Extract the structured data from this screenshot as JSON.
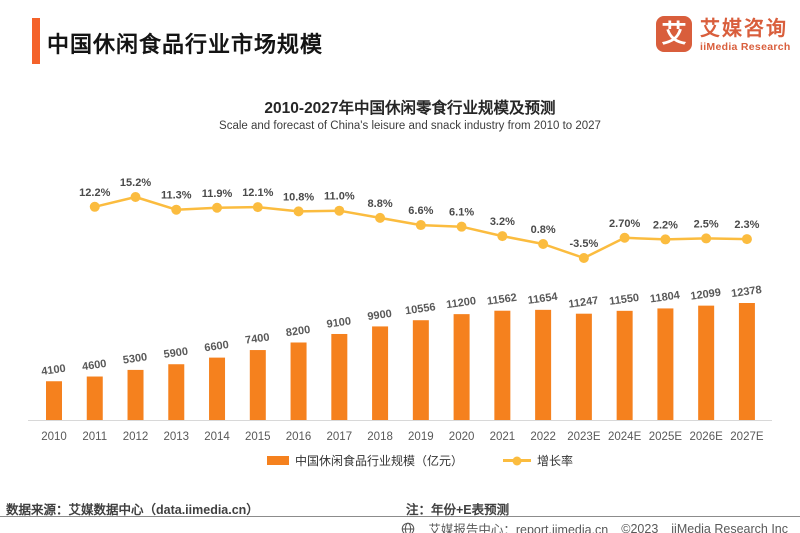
{
  "header": {
    "title": "中国休闲食品行业市场规模"
  },
  "logo": {
    "glyph": "艾",
    "name_cn": "艾媒咨询",
    "name_en": "iiMedia Research"
  },
  "colors": {
    "accent": "#F4622A",
    "brand": "#D95E3C",
    "bar": "#F5811E",
    "line": "#FBBC3F",
    "axis": "#D8D8D8",
    "label": "#595959"
  },
  "chart_data": {
    "type": "bar",
    "title": "2010-2027年中国休闲零食行业规模及预测",
    "subtitle": "Scale and forecast of China's leisure and snack industry from 2010 to 2027",
    "categories": [
      "2010",
      "2011",
      "2012",
      "2013",
      "2014",
      "2015",
      "2016",
      "2017",
      "2018",
      "2019",
      "2020",
      "2021",
      "2022",
      "2023E",
      "2024E",
      "2025E",
      "2026E",
      "2027E"
    ],
    "series": [
      {
        "name": "中国休闲食品行业规模（亿元）",
        "type": "bar",
        "color": "#F5811E",
        "values": [
          4100,
          4600,
          5300,
          5900,
          6600,
          7400,
          8200,
          9100,
          9900,
          10556,
          11200,
          11562,
          11654,
          11247,
          11550,
          11804,
          12099,
          12378
        ]
      },
      {
        "name": "增长率",
        "type": "line",
        "color": "#FBBC3F",
        "values": [
          null,
          12.2,
          15.2,
          11.3,
          11.9,
          12.1,
          10.8,
          11.0,
          8.8,
          6.6,
          6.1,
          3.2,
          0.8,
          -3.5,
          2.7,
          2.2,
          2.5,
          2.3
        ],
        "labels": [
          null,
          "12.2%",
          "15.2%",
          "11.3%",
          "11.9%",
          "12.1%",
          "10.8%",
          "11.0%",
          "8.8%",
          "6.6%",
          "6.1%",
          "3.2%",
          "0.8%",
          "-3.5%",
          "2.70%",
          "2.2%",
          "2.5%",
          "2.3%"
        ]
      }
    ],
    "ylim": [
      0,
      12500
    ],
    "grid": false,
    "legend_position": "bottom"
  },
  "footer": {
    "source": "数据来源：艾媒数据中心（data.iimedia.cn）",
    "note": "注：年份+E表预测",
    "report_center": "艾媒报告中心：report.iimedia.cn",
    "copyright": "©2023",
    "company": "iiMedia Research  Inc"
  }
}
